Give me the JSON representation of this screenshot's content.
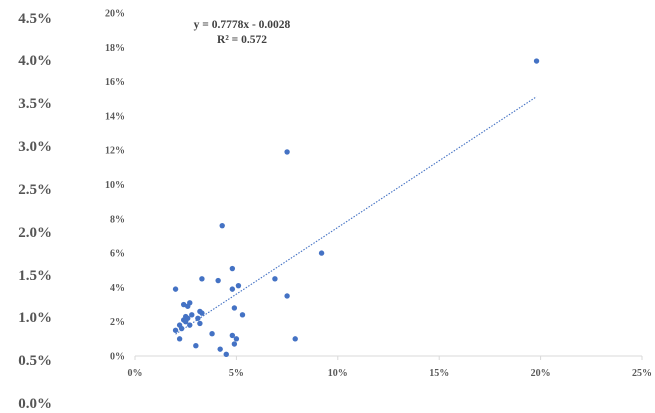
{
  "outer_axis": {
    "ticks": [
      "4.5%",
      "4.0%",
      "3.5%",
      "3.0%",
      "2.5%",
      "2.0%",
      "1.5%",
      "1.0%",
      "0.5%",
      "0.0%"
    ]
  },
  "chart_data": {
    "type": "scatter",
    "title": "",
    "xlabel": "",
    "ylabel": "",
    "xlim": [
      0,
      0.25
    ],
    "ylim": [
      0,
      0.2
    ],
    "x_ticks": [
      "0%",
      "5%",
      "10%",
      "15%",
      "20%",
      "25%"
    ],
    "y_ticks": [
      "0%",
      "2%",
      "4%",
      "6%",
      "8%",
      "10%",
      "12%",
      "14%",
      "16%",
      "18%",
      "20%"
    ],
    "grid": false,
    "legend": "none",
    "series": [
      {
        "color": "#4472C4",
        "points": [
          [
            0.02,
            0.039
          ],
          [
            0.02,
            0.015
          ],
          [
            0.022,
            0.018
          ],
          [
            0.022,
            0.01
          ],
          [
            0.023,
            0.016
          ],
          [
            0.024,
            0.03
          ],
          [
            0.024,
            0.021
          ],
          [
            0.025,
            0.023
          ],
          [
            0.025,
            0.02
          ],
          [
            0.026,
            0.029
          ],
          [
            0.026,
            0.022
          ],
          [
            0.027,
            0.031
          ],
          [
            0.027,
            0.018
          ],
          [
            0.028,
            0.024
          ],
          [
            0.03,
            0.006
          ],
          [
            0.031,
            0.022
          ],
          [
            0.032,
            0.026
          ],
          [
            0.032,
            0.019
          ],
          [
            0.033,
            0.025
          ],
          [
            0.033,
            0.045
          ],
          [
            0.038,
            0.013
          ],
          [
            0.041,
            0.044
          ],
          [
            0.042,
            0.004
          ],
          [
            0.043,
            0.076
          ],
          [
            0.045,
            0.001
          ],
          [
            0.048,
            0.051
          ],
          [
            0.048,
            0.039
          ],
          [
            0.048,
            0.012
          ],
          [
            0.049,
            0.007
          ],
          [
            0.049,
            0.028
          ],
          [
            0.05,
            0.01
          ],
          [
            0.051,
            0.041
          ],
          [
            0.053,
            0.024
          ],
          [
            0.069,
            0.045
          ],
          [
            0.075,
            0.035
          ],
          [
            0.075,
            0.119
          ],
          [
            0.079,
            0.01
          ],
          [
            0.092,
            0.06
          ],
          [
            0.198,
            0.172
          ]
        ]
      }
    ],
    "trendline": {
      "type": "linear",
      "slope": 0.7778,
      "intercept": -0.0028,
      "x_range": [
        0.02,
        0.198
      ],
      "color": "#4472C4",
      "equation_label": "y = 0.7778x - 0.0028",
      "r2_label": "R² = 0.572"
    }
  }
}
